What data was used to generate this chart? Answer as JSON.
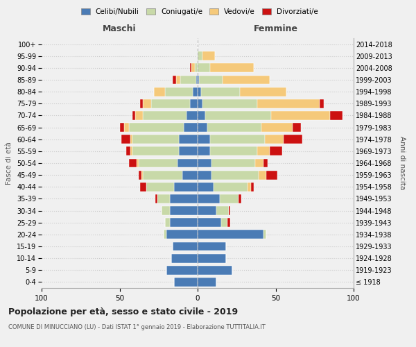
{
  "age_groups": [
    "100+",
    "95-99",
    "90-94",
    "85-89",
    "80-84",
    "75-79",
    "70-74",
    "65-69",
    "60-64",
    "55-59",
    "50-54",
    "45-49",
    "40-44",
    "35-39",
    "30-34",
    "25-29",
    "20-24",
    "15-19",
    "10-14",
    "5-9",
    "0-4"
  ],
  "birth_years": [
    "≤ 1918",
    "1919-1923",
    "1924-1928",
    "1929-1933",
    "1934-1938",
    "1939-1943",
    "1944-1948",
    "1949-1953",
    "1954-1958",
    "1959-1963",
    "1964-1968",
    "1969-1973",
    "1974-1978",
    "1979-1983",
    "1984-1988",
    "1989-1993",
    "1994-1998",
    "1999-2003",
    "2004-2008",
    "2009-2013",
    "2014-2018"
  ],
  "colors": {
    "celibi": "#4a7bb5",
    "coniugati": "#c8d9a8",
    "vedovi": "#f5c97a",
    "divorziati": "#cc1111"
  },
  "maschi": {
    "celibi": [
      0,
      0,
      0,
      1,
      3,
      5,
      7,
      9,
      12,
      12,
      13,
      10,
      15,
      18,
      18,
      18,
      20,
      16,
      17,
      20,
      15
    ],
    "coniugati": [
      0,
      0,
      2,
      10,
      18,
      25,
      28,
      35,
      30,
      30,
      25,
      25,
      18,
      8,
      5,
      3,
      2,
      0,
      0,
      0,
      0
    ],
    "vedovi": [
      0,
      0,
      2,
      3,
      7,
      5,
      5,
      3,
      1,
      1,
      1,
      1,
      0,
      0,
      0,
      0,
      0,
      0,
      0,
      0,
      0
    ],
    "divorziati": [
      0,
      0,
      1,
      2,
      0,
      2,
      2,
      3,
      6,
      3,
      5,
      2,
      4,
      1,
      0,
      0,
      0,
      0,
      0,
      0,
      0
    ]
  },
  "femmine": {
    "celibi": [
      0,
      0,
      0,
      1,
      2,
      3,
      5,
      6,
      8,
      8,
      9,
      9,
      10,
      14,
      12,
      15,
      42,
      18,
      18,
      22,
      12
    ],
    "coniugati": [
      0,
      3,
      8,
      15,
      25,
      35,
      42,
      35,
      35,
      30,
      28,
      30,
      22,
      12,
      8,
      4,
      2,
      0,
      0,
      0,
      0
    ],
    "vedovi": [
      0,
      8,
      28,
      30,
      30,
      40,
      38,
      20,
      12,
      8,
      5,
      5,
      2,
      0,
      0,
      0,
      0,
      0,
      0,
      0,
      0
    ],
    "divorziati": [
      0,
      0,
      0,
      0,
      0,
      3,
      8,
      5,
      12,
      8,
      3,
      7,
      2,
      2,
      1,
      2,
      0,
      0,
      0,
      0,
      0
    ]
  },
  "title": "Popolazione per età, sesso e stato civile - 2019",
  "subtitle": "COMUNE DI MINUCCIANO (LU) - Dati ISTAT 1° gennaio 2019 - Elaborazione TUTTITALIA.IT",
  "xlabel_left": "Maschi",
  "xlabel_right": "Femmine",
  "ylabel_left": "Fasce di età",
  "ylabel_right": "Anni di nascita",
  "xlim": 100,
  "legend_labels": [
    "Celibi/Nubili",
    "Coniugati/e",
    "Vedovi/e",
    "Divorziati/e"
  ],
  "bg_color": "#f0f0f0"
}
